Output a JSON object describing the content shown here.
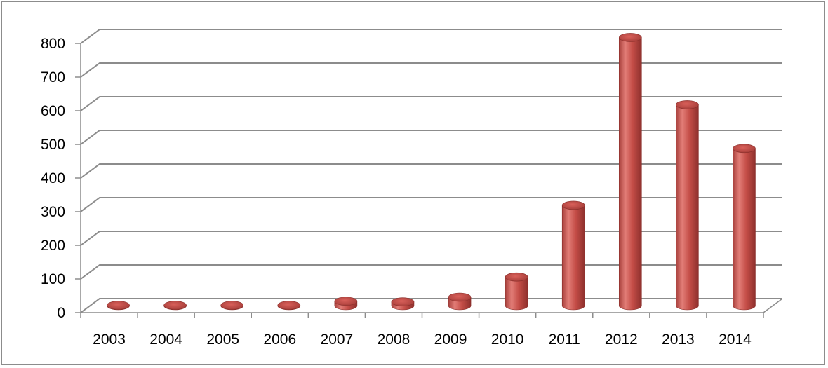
{
  "chart_data": {
    "type": "bar",
    "title": "",
    "xlabel": "",
    "ylabel": "",
    "categories": [
      "2003",
      "2004",
      "2005",
      "2006",
      "2007",
      "2008",
      "2009",
      "2010",
      "2011",
      "2012",
      "2013",
      "2014"
    ],
    "values": [
      1,
      1,
      1,
      1,
      13,
      11,
      25,
      85,
      298,
      797,
      597,
      467
    ],
    "ylim": [
      0,
      800
    ],
    "yticks": [
      "0",
      "100",
      "200",
      "300",
      "400",
      "500",
      "600",
      "700",
      "800"
    ],
    "grid": true,
    "legend": "none",
    "style": "3d-cylinder",
    "bar_color": "#c0504d",
    "grid_color": "#8c8c8c"
  }
}
